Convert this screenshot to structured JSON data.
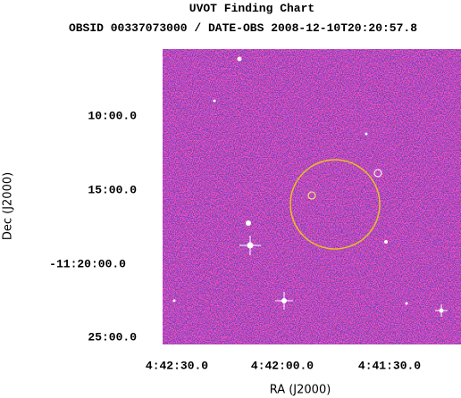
{
  "header": {
    "title": "UVOT Finding Chart",
    "subtitle": "OBSID 00337073000 / DATE-OBS 2008-12-10T20:20:57.8"
  },
  "axes": {
    "x": {
      "label": "RA (J2000)",
      "ticks": [
        "4:42:30.0",
        "4:42:00.0",
        "4:41:30.0"
      ]
    },
    "y": {
      "label": "Dec (J2000)",
      "ticks": [
        "10:00.0",
        "15:00.0",
        "-11:20:00.0",
        "25:00.0"
      ]
    }
  }
}
